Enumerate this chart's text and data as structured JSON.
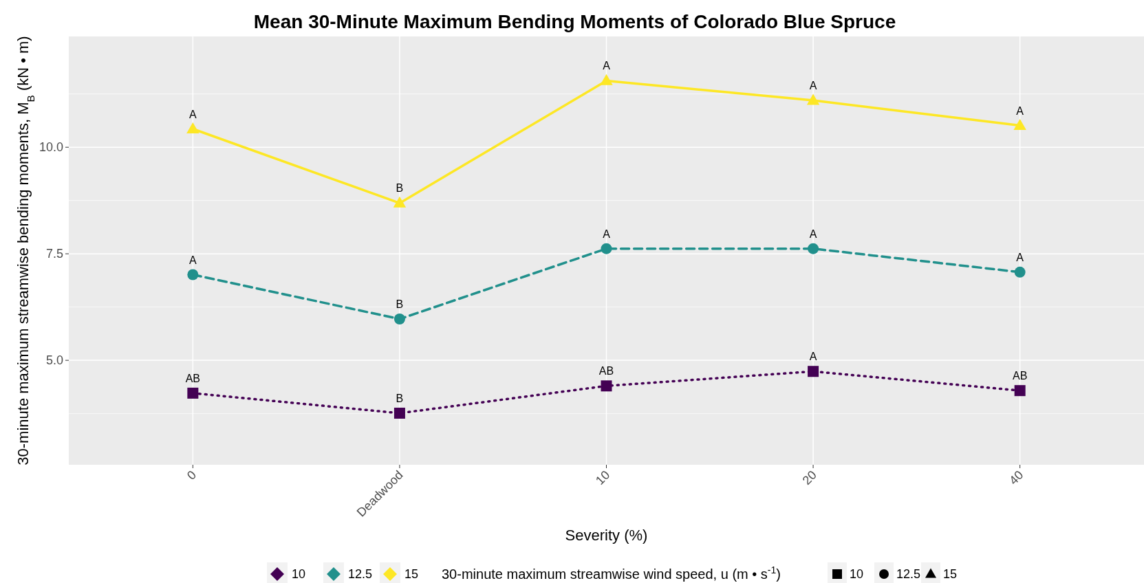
{
  "chart_data": {
    "type": "line",
    "title": "Mean 30-Minute Maximum Bending Moments of Colorado Blue Spruce",
    "xlabel": "Severity (%)",
    "ylabel": "30-minute maximum streamwise bending moments, M$_{B}$ (kN • m)",
    "legend_title": "30-minute maximum streamwise wind speed, u (m • s$^{-1}$)",
    "categories": [
      "0",
      "Deadwood",
      "10",
      "20",
      "40"
    ],
    "series": [
      {
        "name": "10",
        "color": "#440154",
        "values": [
          4.23,
          3.76,
          4.4,
          4.74,
          4.29
        ],
        "marker": "square",
        "line_style": "dotted"
      },
      {
        "name": "12.5",
        "color": "#21908c",
        "values": [
          7.01,
          5.97,
          7.62,
          7.62,
          7.07
        ],
        "marker": "circle",
        "line_style": "dashed"
      },
      {
        "name": "15",
        "color": "#fde725",
        "values": [
          10.43,
          8.69,
          11.56,
          11.1,
          10.51
        ],
        "marker": "triangle",
        "line_style": "solid"
      }
    ],
    "ylim": [
      2.55,
      12.6
    ],
    "yticks": [
      {
        "value": 3.75,
        "label": null
      },
      {
        "value": 5,
        "label": "5.0"
      },
      {
        "value": 6.25,
        "label": null
      },
      {
        "value": 7.5,
        "label": "7.5"
      },
      {
        "value": 8.75,
        "label": null
      },
      {
        "value": 10,
        "label": "10.0"
      },
      {
        "value": 11.25,
        "label": null
      }
    ],
    "grid": true,
    "legend": "bottom",
    "annotations": [
      {
        "text": "AB",
        "x": "0",
        "y": 4.23
      },
      {
        "text": "B",
        "x": "Deadwood",
        "y": 3.76
      },
      {
        "text": "AB",
        "x": "10",
        "y": 4.4
      },
      {
        "text": "A",
        "x": "20",
        "y": 4.74
      },
      {
        "text": "AB",
        "x": "40",
        "y": 4.29
      },
      {
        "text": "A",
        "x": "0",
        "y": 7.01
      },
      {
        "text": "B",
        "x": "Deadwood",
        "y": 5.97
      },
      {
        "text": "A",
        "x": "10",
        "y": 7.62
      },
      {
        "text": "A",
        "x": "20",
        "y": 7.62
      },
      {
        "text": "A",
        "x": "40",
        "y": 7.07
      },
      {
        "text": "A",
        "x": "0",
        "y": 10.43
      },
      {
        "text": "B",
        "x": "Deadwood",
        "y": 8.69
      },
      {
        "text": "A",
        "x": "10",
        "y": 11.56
      },
      {
        "text": "A",
        "x": "20",
        "y": 11.1
      },
      {
        "text": "A",
        "x": "40",
        "y": 10.51
      }
    ]
  }
}
